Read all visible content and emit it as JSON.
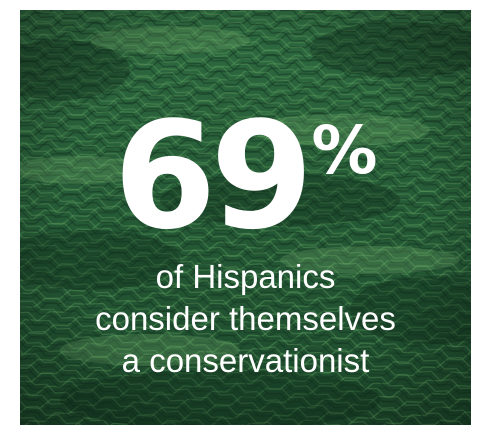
{
  "infographic": {
    "percent_value": "69",
    "percent_sign": "%",
    "caption_lines": [
      "of Hispanics",
      "consider themselves",
      "a conservationist"
    ]
  },
  "colors": {
    "forest_dark": "#153a23",
    "forest_mid": "#2c6a3f",
    "forest_light": "#5b9a5a",
    "text": "#ffffff"
  }
}
